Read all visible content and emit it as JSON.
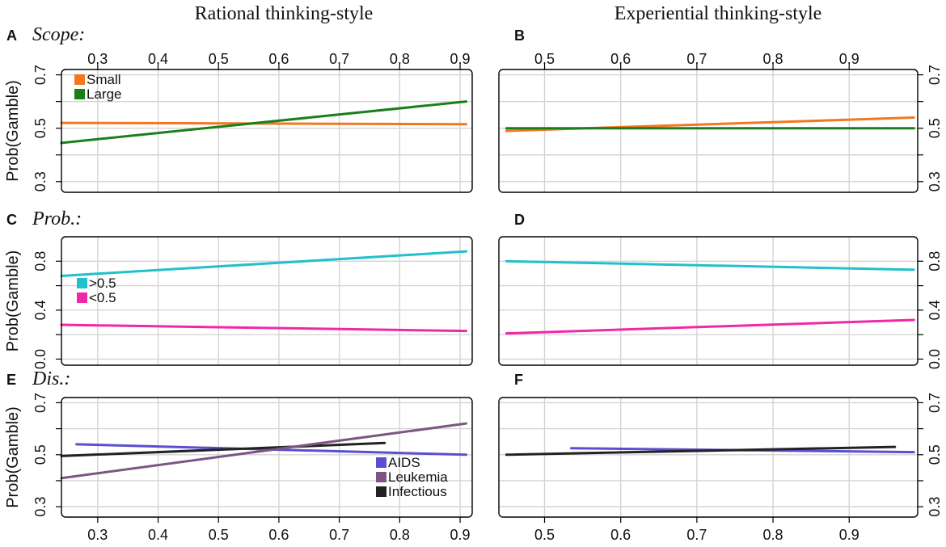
{
  "figure": {
    "col_titles": [
      "Rational thinking-style",
      "Experiential thinking-style"
    ],
    "ylabel": "Prob(Gamble)"
  },
  "chart_data": [
    {
      "id": "A",
      "letter": "A",
      "title": "Scope:",
      "type": "line",
      "xlim": [
        0.24,
        0.92
      ],
      "ylim": [
        0.26,
        0.72
      ],
      "xticks": [
        0.3,
        0.4,
        0.5,
        0.6,
        0.7,
        0.8,
        0.9
      ],
      "yticks": [
        0.3,
        0.5,
        0.7
      ],
      "ygrid": [
        0.3,
        0.4,
        0.5,
        0.6,
        0.7
      ],
      "legend": "top-left",
      "series": [
        {
          "name": "Small",
          "color": "#f07820",
          "x": [
            0.24,
            0.91
          ],
          "y": [
            0.52,
            0.515
          ]
        },
        {
          "name": "Large",
          "color": "#1a7f1a",
          "x": [
            0.24,
            0.91
          ],
          "y": [
            0.445,
            0.6
          ]
        }
      ]
    },
    {
      "id": "B",
      "letter": "B",
      "title": "",
      "type": "line",
      "xlim": [
        0.44,
        0.99
      ],
      "ylim": [
        0.26,
        0.72
      ],
      "xticks": [
        0.5,
        0.6,
        0.7,
        0.8,
        0.9
      ],
      "yticks": [
        0.3,
        0.5,
        0.7
      ],
      "ygrid": [
        0.3,
        0.4,
        0.5,
        0.6,
        0.7
      ],
      "series": [
        {
          "name": "Small",
          "color": "#f07820",
          "x": [
            0.45,
            0.985
          ],
          "y": [
            0.49,
            0.54
          ]
        },
        {
          "name": "Large",
          "color": "#1a7f1a",
          "x": [
            0.45,
            0.985
          ],
          "y": [
            0.5,
            0.5
          ]
        }
      ]
    },
    {
      "id": "C",
      "letter": "C",
      "title": "Prob.:",
      "type": "line",
      "xlim": [
        0.24,
        0.92
      ],
      "ylim": [
        -0.05,
        1.0
      ],
      "xticks": [
        0.3,
        0.4,
        0.5,
        0.6,
        0.7,
        0.8,
        0.9
      ],
      "yticks": [
        0.0,
        0.4,
        0.8
      ],
      "ygrid": [
        0.0,
        0.2,
        0.4,
        0.6,
        0.8
      ],
      "legend": "middle-left",
      "series": [
        {
          "name": ">0.5",
          "color": "#20c0cc",
          "x": [
            0.24,
            0.91
          ],
          "y": [
            0.68,
            0.88
          ]
        },
        {
          "name": "<0.5",
          "color": "#f028a8",
          "x": [
            0.24,
            0.91
          ],
          "y": [
            0.28,
            0.23
          ]
        }
      ]
    },
    {
      "id": "D",
      "letter": "D",
      "title": "",
      "type": "line",
      "xlim": [
        0.44,
        0.99
      ],
      "ylim": [
        -0.05,
        1.0
      ],
      "xticks": [
        0.5,
        0.6,
        0.7,
        0.8,
        0.9
      ],
      "yticks": [
        0.0,
        0.4,
        0.8
      ],
      "ygrid": [
        0.0,
        0.2,
        0.4,
        0.6,
        0.8
      ],
      "series": [
        {
          "name": ">0.5",
          "color": "#20c0cc",
          "x": [
            0.45,
            0.985
          ],
          "y": [
            0.8,
            0.73
          ]
        },
        {
          "name": "<0.5",
          "color": "#f028a8",
          "x": [
            0.45,
            0.985
          ],
          "y": [
            0.21,
            0.32
          ]
        }
      ]
    },
    {
      "id": "E",
      "letter": "E",
      "title": "Dis.:",
      "type": "line",
      "xlim": [
        0.24,
        0.92
      ],
      "ylim": [
        0.26,
        0.72
      ],
      "xticks": [
        0.3,
        0.4,
        0.5,
        0.6,
        0.7,
        0.8,
        0.9
      ],
      "yticks": [
        0.3,
        0.5,
        0.7
      ],
      "ygrid": [
        0.3,
        0.4,
        0.5,
        0.6,
        0.7
      ],
      "legend": "bottom-right",
      "series": [
        {
          "name": "AIDS",
          "color": "#5a4fd0",
          "x": [
            0.265,
            0.91
          ],
          "y": [
            0.54,
            0.5
          ]
        },
        {
          "name": "Leukemia",
          "color": "#7d5583",
          "x": [
            0.24,
            0.91
          ],
          "y": [
            0.41,
            0.62
          ]
        },
        {
          "name": "Infectious",
          "color": "#222222",
          "x": [
            0.24,
            0.775
          ],
          "y": [
            0.495,
            0.545
          ]
        }
      ]
    },
    {
      "id": "F",
      "letter": "F",
      "title": "",
      "type": "line",
      "xlim": [
        0.44,
        0.99
      ],
      "ylim": [
        0.26,
        0.72
      ],
      "xticks": [
        0.5,
        0.6,
        0.7,
        0.8,
        0.9
      ],
      "yticks": [
        0.3,
        0.5,
        0.7
      ],
      "ygrid": [
        0.3,
        0.4,
        0.5,
        0.6,
        0.7
      ],
      "series": [
        {
          "name": "AIDS",
          "color": "#5a4fd0",
          "x": [
            0.535,
            0.985
          ],
          "y": [
            0.525,
            0.51
          ]
        },
        {
          "name": "Infectious",
          "color": "#222222",
          "x": [
            0.45,
            0.96
          ],
          "y": [
            0.5,
            0.53
          ]
        }
      ]
    }
  ]
}
